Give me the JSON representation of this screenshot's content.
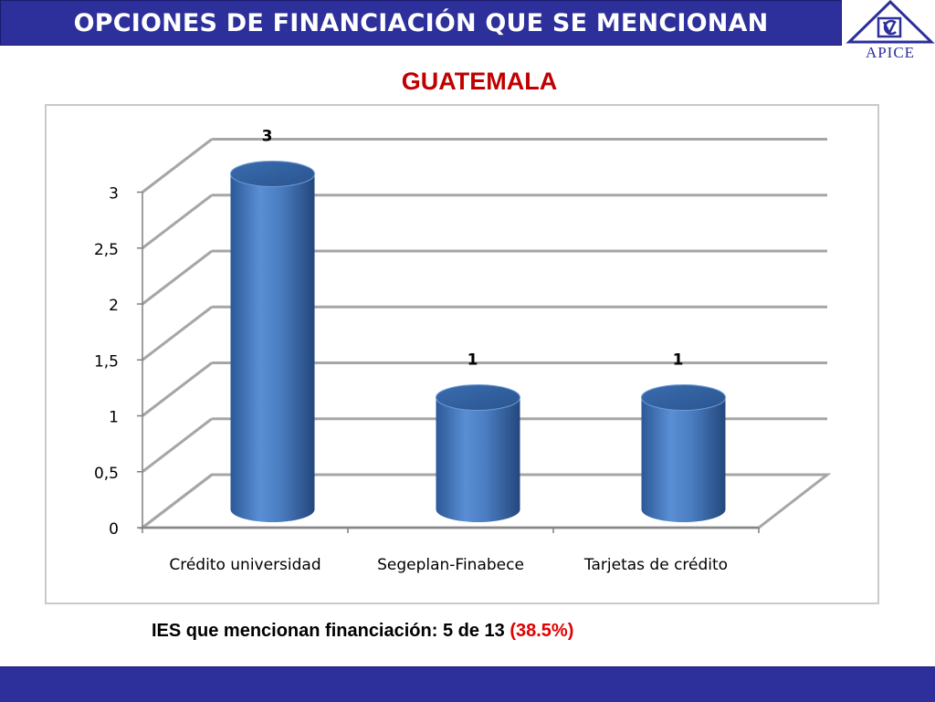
{
  "header": {
    "title": "OPCIONES DE FINANCIACIÓN QUE SE MENCIONAN",
    "logo_text": "APICE"
  },
  "colors": {
    "header_bar": "#2d2f9a",
    "subtitle": "#c00000",
    "bar": "#4a7cc0",
    "highlight": "#e00000"
  },
  "chart_data": {
    "type": "bar",
    "title": "GUATEMALA",
    "categories": [
      "Crédito universidad",
      "Segeplan-Finabece",
      "Tarjetas de crédito"
    ],
    "values": [
      3,
      1,
      1
    ],
    "data_labels": [
      "3",
      "1",
      "1"
    ],
    "ylim": [
      0,
      3
    ],
    "yticks": [
      0,
      0.5,
      1,
      1.5,
      2,
      2.5,
      3
    ],
    "ytick_labels": [
      "0",
      "0,5",
      "1",
      "1,5",
      "2",
      "2,5",
      "3"
    ],
    "grid": true,
    "style": "3d-cylinder"
  },
  "summary": {
    "text": "IES que mencionan financiación: 5 de 13",
    "percent": "(38.5%)"
  }
}
